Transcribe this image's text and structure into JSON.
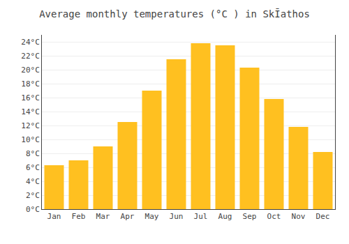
{
  "chart_data": {
    "type": "bar",
    "title": "Average monthly temperatures (°C ) in SkĪathos",
    "categories": [
      "Jan",
      "Feb",
      "Mar",
      "Apr",
      "May",
      "Jun",
      "Jul",
      "Aug",
      "Sep",
      "Oct",
      "Nov",
      "Dec"
    ],
    "values": [
      6.3,
      7.0,
      9.0,
      12.5,
      17.0,
      21.5,
      23.8,
      23.5,
      20.3,
      15.8,
      11.8,
      8.2
    ],
    "color": "#FFC020",
    "ylim": [
      0,
      25
    ],
    "yticks": [
      {
        "value": 0,
        "label": "0°C"
      },
      {
        "value": 2,
        "label": "2°C"
      },
      {
        "value": 4,
        "label": "4°C"
      },
      {
        "value": 6,
        "label": "6°C"
      },
      {
        "value": 8,
        "label": "8°C"
      },
      {
        "value": 10,
        "label": "10°C"
      },
      {
        "value": 12,
        "label": "12°C"
      },
      {
        "value": 14,
        "label": "14°C"
      },
      {
        "value": 16,
        "label": "16°C"
      },
      {
        "value": 18,
        "label": "18°C"
      },
      {
        "value": 20,
        "label": "20°C"
      },
      {
        "value": 22,
        "label": "22°C"
      },
      {
        "value": 24,
        "label": "24°C"
      }
    ],
    "grid": true
  }
}
